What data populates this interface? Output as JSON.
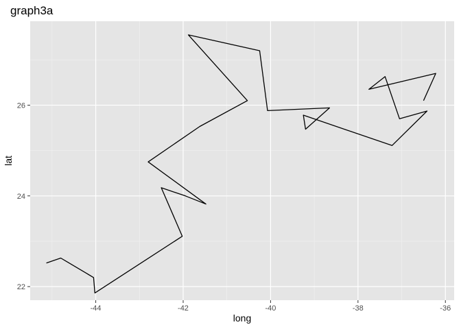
{
  "chart_data": {
    "type": "line",
    "title": "graph3a",
    "xlabel": "long",
    "ylabel": "lat",
    "xlim": [
      -45.5,
      -35.8
    ],
    "ylim": [
      21.7,
      27.85
    ],
    "x_ticks": [
      -44,
      -42,
      -40,
      -38,
      -36
    ],
    "x_tick_labels": [
      "-44",
      "-42",
      "-40",
      "-38",
      "-36"
    ],
    "y_ticks": [
      22,
      24,
      26
    ],
    "y_tick_labels": [
      "22",
      "24",
      "26"
    ],
    "grid": true,
    "colors": {
      "panel": "#E5E5E5",
      "grid_major": "#FFFFFF",
      "line": "#000000"
    },
    "series": [
      {
        "x": [
          -45.13,
          -44.8,
          -44.05,
          -44.02,
          -42.02,
          -42.5,
          -41.95,
          -41.48,
          -42.8,
          -41.62,
          -40.53,
          -41.88,
          -40.25,
          -40.07,
          -38.65,
          -39.2,
          -39.25,
          -37.22,
          -36.42,
          -37.05,
          -37.38,
          -37.75,
          -36.22,
          -36.5
        ],
        "y": [
          22.52,
          22.63,
          22.2,
          21.86,
          23.11,
          24.18,
          24.0,
          23.82,
          24.75,
          25.53,
          26.1,
          27.55,
          27.2,
          25.88,
          25.94,
          25.47,
          25.78,
          25.11,
          25.87,
          25.7,
          26.63,
          26.35,
          26.7,
          26.1
        ]
      }
    ]
  }
}
